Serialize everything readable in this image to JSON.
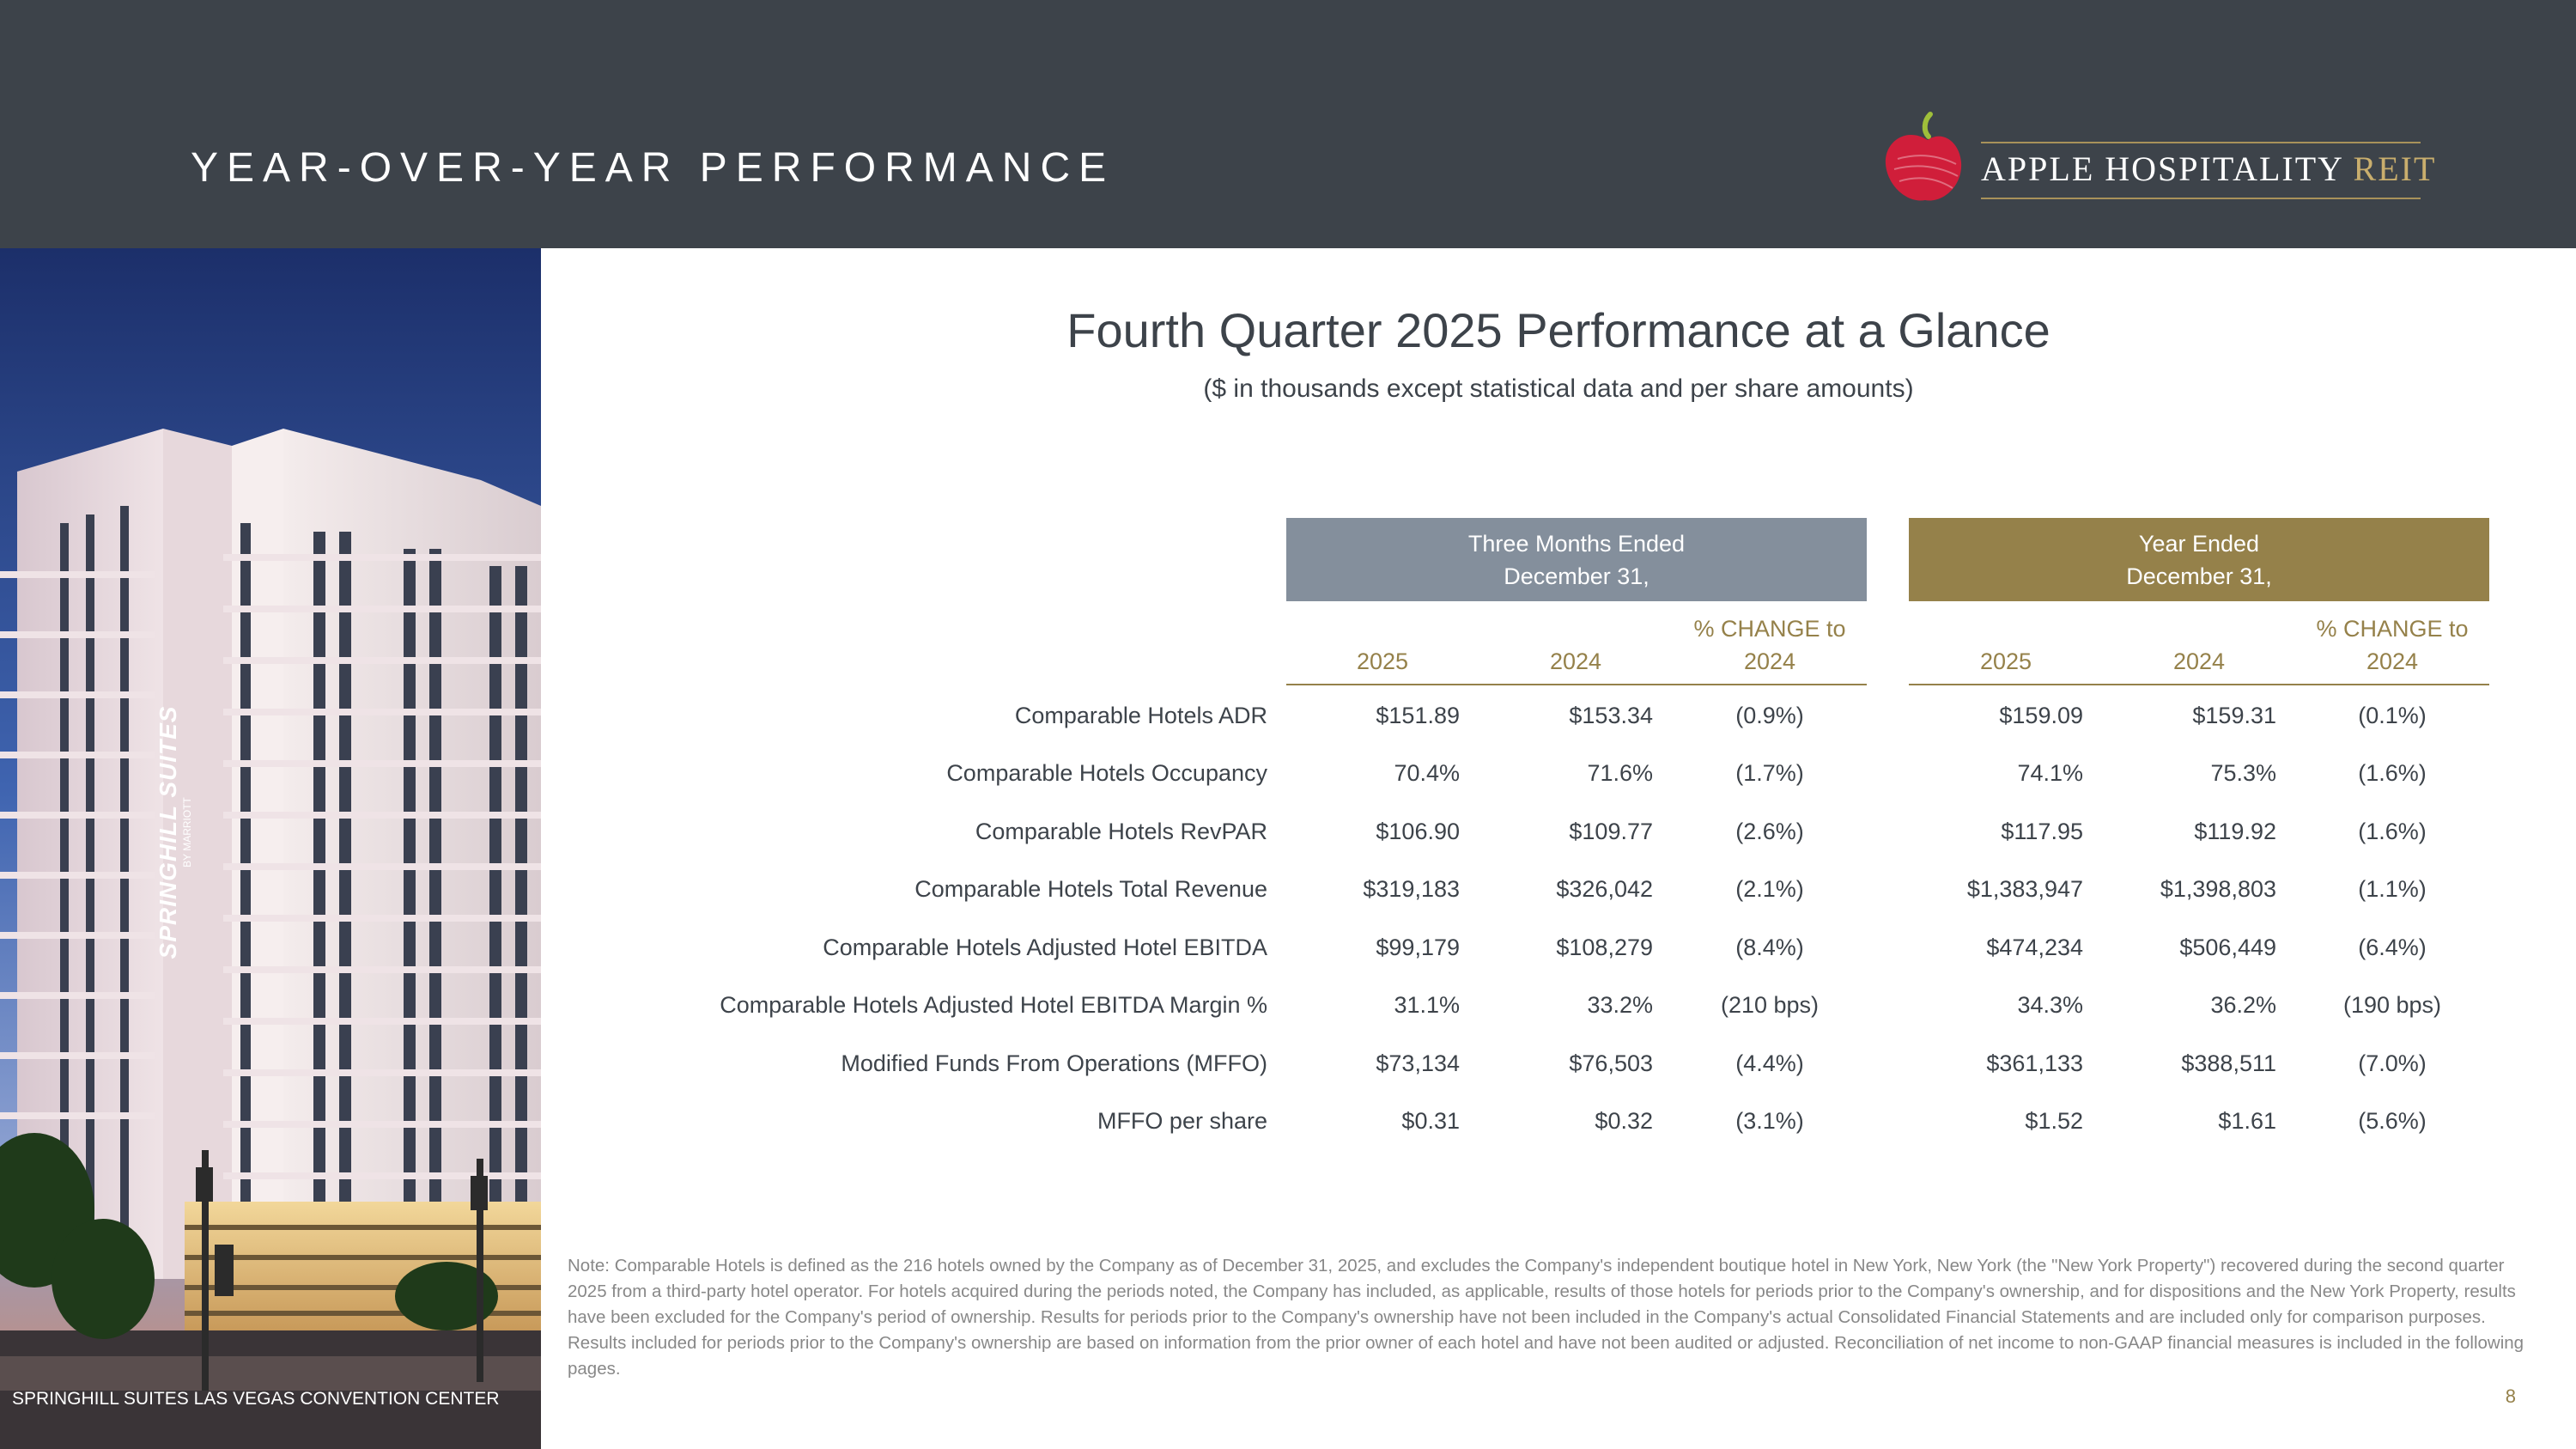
{
  "header": {
    "title": "YEAR-OVER-YEAR PERFORMANCE",
    "logo": {
      "name": "APPLE HOSPITALITY",
      "suffix": "REIT"
    }
  },
  "photo": {
    "caption": "SPRINGHILL SUITES LAS VEGAS CONVENTION CENTER",
    "sign_text": "SPRINGHILL SUITES",
    "sign_subtext": "BY MARRIOTT"
  },
  "title": "Fourth Quarter 2025 Performance at a Glance",
  "subtitle": "($ in thousands except statistical data and per share amounts)",
  "table": {
    "group_headers": [
      {
        "line1": "Three Months Ended",
        "line2": "December 31,"
      },
      {
        "line1": "Year Ended",
        "line2": "December 31,"
      }
    ],
    "column_headers": [
      {
        "line1": "",
        "line2": "2025"
      },
      {
        "line1": "",
        "line2": "2024"
      },
      {
        "line1": "% CHANGE to",
        "line2": "2024"
      },
      {
        "line1": "",
        "line2": "2025"
      },
      {
        "line1": "",
        "line2": "2024"
      },
      {
        "line1": "% CHANGE to",
        "line2": "2024"
      }
    ],
    "rows": [
      {
        "label": "Comparable Hotels ADR",
        "q2025": "$151.89",
        "q2024": "$153.34",
        "qchg": "(0.9%)",
        "y2025": "$159.09",
        "y2024": "$159.31",
        "ychg": "(0.1%)"
      },
      {
        "label": "Comparable Hotels Occupancy",
        "q2025": "70.4%",
        "q2024": "71.6%",
        "qchg": "(1.7%)",
        "y2025": "74.1%",
        "y2024": "75.3%",
        "ychg": "(1.6%)"
      },
      {
        "label": "Comparable Hotels RevPAR",
        "q2025": "$106.90",
        "q2024": "$109.77",
        "qchg": "(2.6%)",
        "y2025": "$117.95",
        "y2024": "$119.92",
        "ychg": "(1.6%)"
      },
      {
        "label": "Comparable Hotels Total Revenue",
        "q2025": "$319,183",
        "q2024": "$326,042",
        "qchg": "(2.1%)",
        "y2025": "$1,383,947",
        "y2024": "$1,398,803",
        "ychg": "(1.1%)"
      },
      {
        "label": "Comparable Hotels Adjusted Hotel EBITDA",
        "q2025": "$99,179",
        "q2024": "$108,279",
        "qchg": "(8.4%)",
        "y2025": "$474,234",
        "y2024": "$506,449",
        "ychg": "(6.4%)"
      },
      {
        "label": "Comparable Hotels Adjusted Hotel EBITDA Margin %",
        "q2025": "31.1%",
        "q2024": "33.2%",
        "qchg": "(210 bps)",
        "y2025": "34.3%",
        "y2024": "36.2%",
        "ychg": "(190 bps)"
      },
      {
        "label": "Modified Funds From Operations (MFFO)",
        "q2025": "$73,134",
        "q2024": "$76,503",
        "qchg": "(4.4%)",
        "y2025": "$361,133",
        "y2024": "$388,511",
        "ychg": "(7.0%)"
      },
      {
        "label": "MFFO per share",
        "q2025": "$0.31",
        "q2024": "$0.32",
        "qchg": "(3.1%)",
        "y2025": "$1.52",
        "y2024": "$1.61",
        "ychg": "(5.6%)"
      }
    ]
  },
  "note": "Note: Comparable Hotels is defined as the 216 hotels owned by the Company as of December 31, 2025, and excludes the Company's independent boutique hotel in New York, New York (the \"New York Property\") recovered during the second quarter 2025 from a third-party hotel operator. For hotels acquired during the periods noted, the Company has included, as applicable, results of those hotels for periods prior to the Company's ownership, and for dispositions and the New York Property, results have been excluded for the Company's period of ownership. Results for periods prior to the Company's ownership have not been included in the Company's actual Consolidated Financial Statements and are included only for comparison purposes. Results included for periods prior to the Company's ownership are based on information from the prior owner of each hotel and have not been audited or adjusted. Reconciliation of net income to non-GAAP financial measures is included in the following pages.",
  "page_number": "8",
  "colors": {
    "header_bg": "#3d434a",
    "gray_band": "#848f9c",
    "gold": "#95814a",
    "apple_red": "#d01e3a"
  }
}
